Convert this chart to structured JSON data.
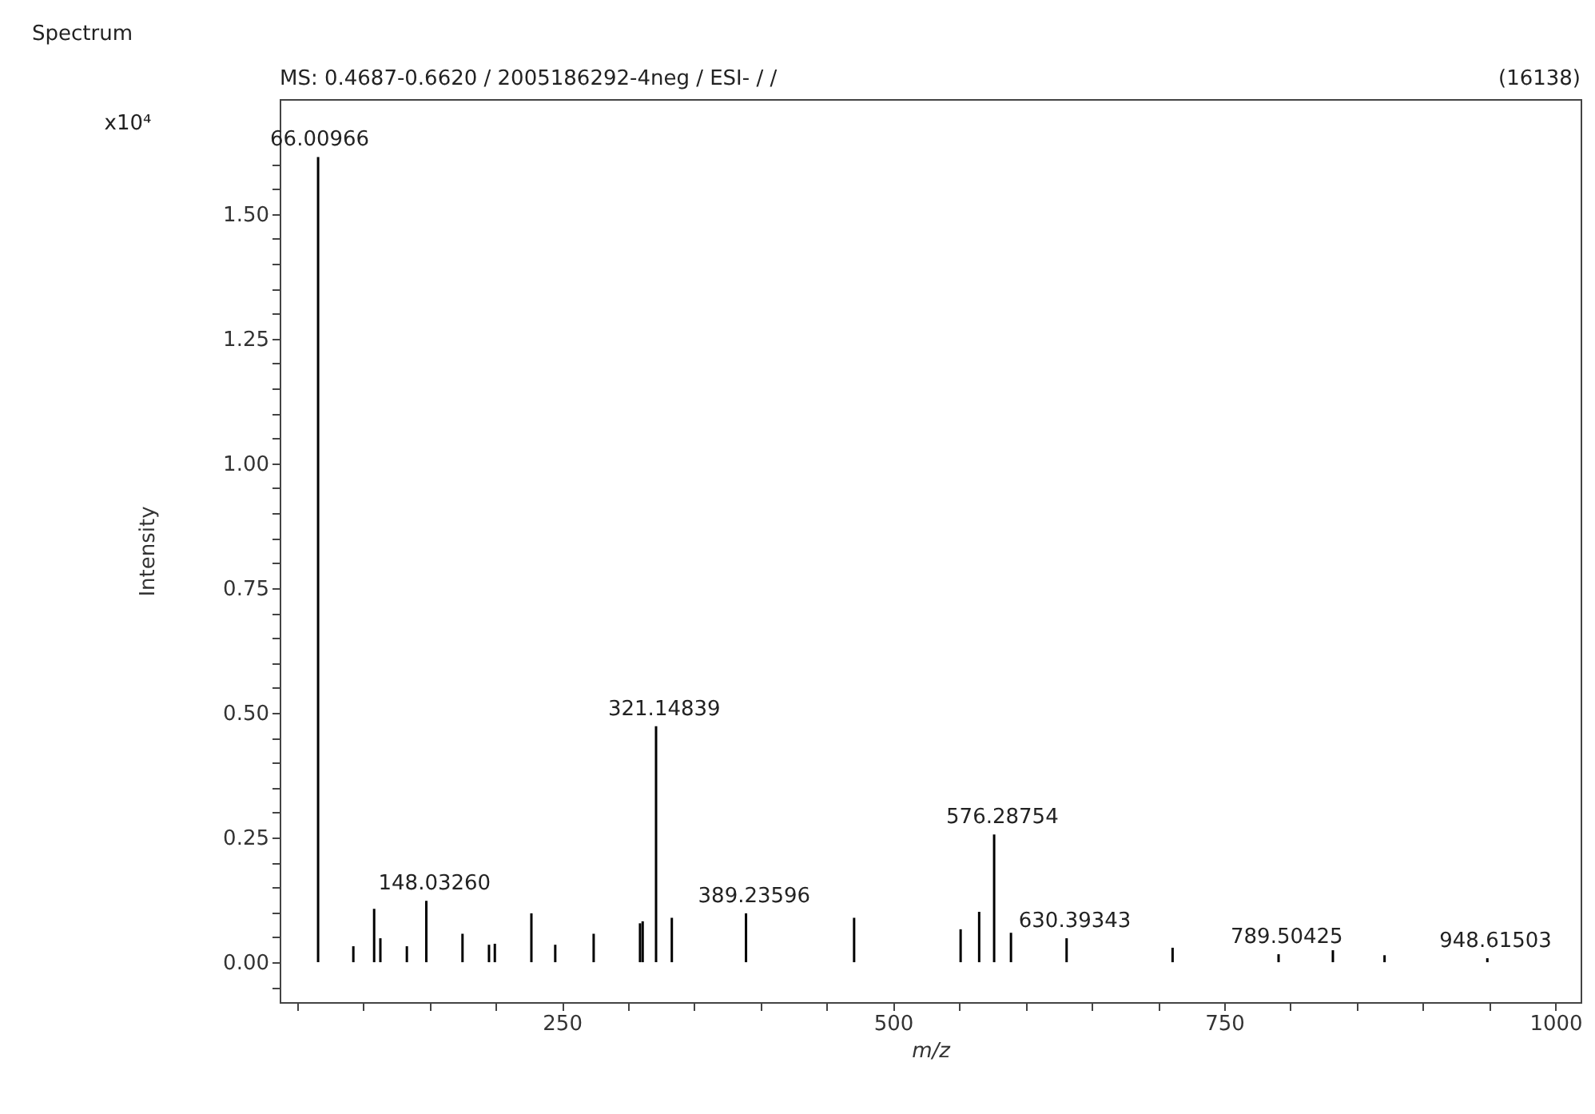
{
  "chart_data": {
    "type": "bar",
    "title": "Spectrum",
    "subtitle": "MS: 0.4687-0.6620 / 2005186292-4neg / ESI- / /",
    "xlabel": "m/z",
    "ylabel": "Intensity",
    "x": [
      66.0,
      92.6,
      108.3,
      113.0,
      133.0,
      147.7,
      175.0,
      195.0,
      199.4,
      227.0,
      245.0,
      274.0,
      309.0,
      311.0,
      321.1,
      333.0,
      389.0,
      470.6,
      551.0,
      565.0,
      576.3,
      589.0,
      631.0,
      711.0,
      791.0,
      832.0,
      871.0,
      948.6
    ],
    "series": [
      {
        "color": "#000000",
        "values": [
          1.614,
          0.032,
          0.107,
          0.048,
          0.032,
          0.123,
          0.057,
          0.035,
          0.037,
          0.098,
          0.035,
          0.057,
          0.078,
          0.082,
          0.473,
          0.089,
          0.098,
          0.089,
          0.066,
          0.101,
          0.256,
          0.059,
          0.048,
          0.029,
          0.016,
          0.024,
          0.014,
          0.008
        ]
      }
    ],
    "xlim": [
      37,
      1019
    ],
    "ylim": [
      -0.08,
      1.73
    ],
    "xticks": [
      {
        "value": 50,
        "label": null
      },
      {
        "value": 100,
        "label": null
      },
      {
        "value": 150,
        "label": null
      },
      {
        "value": 200,
        "label": null
      },
      250,
      {
        "value": 300,
        "label": null
      },
      {
        "value": 350,
        "label": null
      },
      {
        "value": 400,
        "label": null
      },
      {
        "value": 450,
        "label": null
      },
      500,
      {
        "value": 550,
        "label": null
      },
      {
        "value": 600,
        "label": null
      },
      {
        "value": 650,
        "label": null
      },
      {
        "value": 700,
        "label": null
      },
      750,
      {
        "value": 800,
        "label": null
      },
      {
        "value": 850,
        "label": null
      },
      {
        "value": 900,
        "label": null
      },
      {
        "value": 950,
        "label": null
      },
      1000
    ],
    "yticks": [
      {
        "value": -0.05,
        "label": null
      },
      {
        "value": 0,
        "label": "0.00"
      },
      {
        "value": 0.05,
        "label": null
      },
      {
        "value": 0.1,
        "label": null
      },
      {
        "value": 0.15,
        "label": null
      },
      {
        "value": 0.2,
        "label": null
      },
      {
        "value": 0.25,
        "label": "0.25"
      },
      {
        "value": 0.3,
        "label": null
      },
      {
        "value": 0.35,
        "label": null
      },
      {
        "value": 0.4,
        "label": null
      },
      {
        "value": 0.45,
        "label": null
      },
      {
        "value": 0.5,
        "label": "0.50"
      },
      {
        "value": 0.55,
        "label": null
      },
      {
        "value": 0.6,
        "label": null
      },
      {
        "value": 0.65,
        "label": null
      },
      {
        "value": 0.7,
        "label": null
      },
      {
        "value": 0.75,
        "label": "0.75"
      },
      {
        "value": 0.8,
        "label": null
      },
      {
        "value": 0.85,
        "label": null
      },
      {
        "value": 0.9,
        "label": null
      },
      {
        "value": 0.95,
        "label": null
      },
      {
        "value": 1.0,
        "label": "1.00"
      },
      {
        "value": 1.05,
        "label": null
      },
      {
        "value": 1.1,
        "label": null
      },
      {
        "value": 1.15,
        "label": null
      },
      {
        "value": 1.2,
        "label": null
      },
      {
        "value": 1.25,
        "label": "1.25"
      },
      {
        "value": 1.3,
        "label": null
      },
      {
        "value": 1.35,
        "label": null
      },
      {
        "value": 1.4,
        "label": null
      },
      {
        "value": 1.45,
        "label": null
      },
      {
        "value": 1.5,
        "label": "1.50"
      },
      {
        "value": 1.55,
        "label": null
      },
      {
        "value": 1.6,
        "label": null
      }
    ],
    "grid": false,
    "annotations": [
      "(16138)",
      "x10⁴",
      {
        "text": "66.00966",
        "x": 66.0,
        "y": 1.614
      },
      {
        "text": "148.03260",
        "x": 147.7,
        "y": 0.123
      },
      {
        "text": "321.14839",
        "x": 321.1,
        "y": 0.473
      },
      {
        "text": "389.23596",
        "x": 389.0,
        "y": 0.098
      },
      {
        "text": "576.28754",
        "x": 576.3,
        "y": 0.256
      },
      {
        "text": "630.39343",
        "x": 631.0,
        "y": 0.048
      },
      {
        "text": "789.50425",
        "x": 791.0,
        "y": 0.016
      },
      {
        "text": "948.61503",
        "x": 948.6,
        "y": 0.008
      }
    ]
  }
}
